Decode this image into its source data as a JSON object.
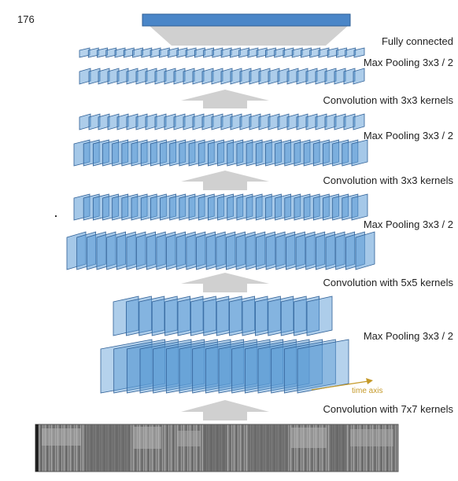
{
  "page_number": "176",
  "labels": {
    "fully_connected": "Fully connected",
    "pool_top": "Max Pooling 3x3 / 2",
    "conv_3x3_upper": "Convolution with 3x3 kernels",
    "pool_upper_mid": "Max Pooling 3x3 / 2",
    "conv_3x3_lower": "Convolution with 3x3 kernels",
    "pool_lower_mid": "Max Pooling 3x3 / 2",
    "conv_5x5": "Convolution with 5x5 kernels",
    "pool_bottom": "Max Pooling 3x3 / 2",
    "conv_7x7": "Convolution with 7x7 kernels",
    "time_axis": "time axis"
  },
  "colors": {
    "fc_bar": "#4a86c8",
    "fc_bar_border": "#2e5f96",
    "map_fill": "#5b9bd5",
    "map_border": "#2e5f96",
    "arrow_gray": "#d0d0d0",
    "time_axis": "#c59a2a",
    "spectrogram_bg": "#7a7a7a"
  }
}
